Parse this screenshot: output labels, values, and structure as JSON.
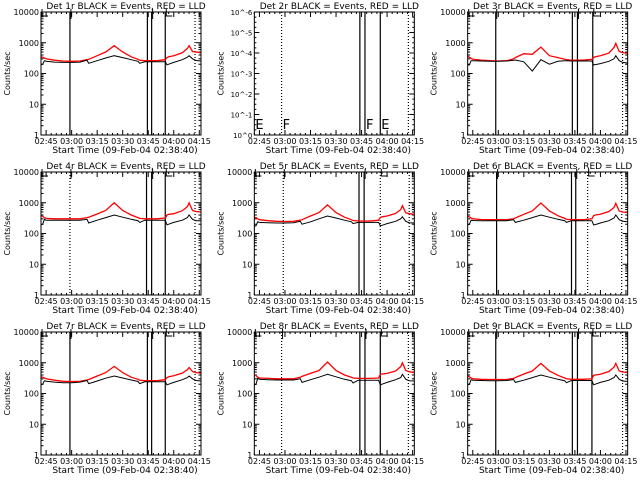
{
  "chart_data": {
    "type": "line",
    "layout": "3x3 grid",
    "xlabel": "Start Time (09-Feb-04 02:38:40)",
    "ylabel": "Counts/sec",
    "x_units": "minutes after 02:45",
    "xlim": [
      -3,
      91
    ],
    "x_ticks": [
      {
        "v": 0,
        "label": "02:45"
      },
      {
        "v": 15,
        "label": "03:00"
      },
      {
        "v": 30,
        "label": "03:15"
      },
      {
        "v": 45,
        "label": "03:30"
      },
      {
        "v": 60,
        "label": "03:45"
      },
      {
        "v": 75,
        "label": "04:00"
      },
      {
        "v": 90,
        "label": "04:15"
      }
    ],
    "y_scale": "log",
    "ylim": [
      1,
      10000
    ],
    "y_ticks": [
      {
        "v": 1,
        "label": "1"
      },
      {
        "v": 10,
        "label": "10"
      },
      {
        "v": 100,
        "label": "100"
      },
      {
        "v": 1000,
        "label": "1000"
      },
      {
        "v": 10000,
        "label": "10000"
      }
    ],
    "series_colors": {
      "events": "#000000",
      "lld": "#ff0000"
    },
    "x": [
      -3,
      -2,
      -1,
      0,
      5,
      10,
      15,
      20,
      24,
      25,
      30,
      35,
      40,
      45,
      50,
      54,
      55,
      58,
      60,
      65,
      70,
      71,
      72,
      75,
      80,
      83,
      84,
      86,
      88,
      91
    ],
    "panels": [
      {
        "title": "Det 1r BLACK = Events, RED = LLD",
        "lines": [
          {
            "t": 14,
            "s": "solid"
          },
          {
            "t": 59.5,
            "s": "solid"
          },
          {
            "t": 62,
            "s": "solid"
          },
          {
            "t": 70,
            "s": "solid"
          },
          {
            "t": 87.5,
            "s": "dotted"
          }
        ],
        "events": [
          190,
          200,
          260,
          250,
          235,
          230,
          230,
          235,
          270,
          215,
          260,
          320,
          380,
          330,
          280,
          250,
          215,
          240,
          240,
          240,
          240,
          190,
          200,
          230,
          280,
          340,
          380,
          300,
          265,
          255
        ],
        "lld": [
          350,
          340,
          320,
          300,
          270,
          255,
          250,
          255,
          280,
          290,
          380,
          500,
          800,
          500,
          350,
          290,
          270,
          260,
          260,
          260,
          280,
          330,
          350,
          380,
          470,
          650,
          800,
          520,
          500,
          470
        ]
      },
      {
        "title": "Det 2r BLACK = Events, RED = LLD",
        "empty": true,
        "y_tick_labels": [
          "10^0",
          "10^-1",
          "10^-2",
          "10^-3",
          "10^-4",
          "10^-5",
          "10^-6"
        ],
        "markers": [
          "E",
          "F",
          "F",
          "E"
        ],
        "lines": [
          {
            "t": 13,
            "s": "dotted"
          },
          {
            "t": 59,
            "s": "solid"
          },
          {
            "t": 62,
            "s": "solid"
          },
          {
            "t": 71,
            "s": "solid"
          },
          {
            "t": 87.5,
            "s": "dotted"
          }
        ]
      },
      {
        "title": "Det 3r BLACK = Events, RED = LLD",
        "lines": [
          {
            "t": 13.5,
            "s": "solid"
          },
          {
            "t": 58.5,
            "s": "solid"
          },
          {
            "t": 61.5,
            "s": "solid"
          },
          {
            "t": 70.5,
            "s": "solid"
          },
          {
            "t": 88,
            "s": "dotted"
          }
        ],
        "events": [
          190,
          190,
          260,
          260,
          255,
          250,
          250,
          255,
          270,
          275,
          240,
          120,
          280,
          200,
          250,
          260,
          260,
          255,
          255,
          255,
          255,
          190,
          195,
          210,
          250,
          300,
          380,
          260,
          230,
          220
        ],
        "lld": [
          360,
          340,
          310,
          290,
          270,
          260,
          255,
          260,
          300,
          330,
          440,
          420,
          720,
          380,
          330,
          290,
          280,
          270,
          270,
          270,
          290,
          330,
          350,
          380,
          460,
          700,
          950,
          520,
          480,
          450
        ]
      },
      {
        "title": "Det 4r BLACK = Events, RED = LLD",
        "lines": [
          {
            "t": 14,
            "s": "dotted"
          },
          {
            "t": 59,
            "s": "solid"
          },
          {
            "t": 62,
            "s": "solid"
          },
          {
            "t": 70,
            "s": "solid"
          },
          {
            "t": 87.5,
            "s": "dotted"
          }
        ],
        "events": [
          190,
          200,
          290,
          270,
          270,
          270,
          270,
          270,
          290,
          220,
          270,
          330,
          400,
          340,
          290,
          260,
          230,
          270,
          270,
          270,
          270,
          190,
          200,
          230,
          270,
          330,
          400,
          290,
          260,
          260
        ],
        "lld": [
          380,
          360,
          330,
          310,
          300,
          300,
          300,
          300,
          330,
          340,
          430,
          560,
          1000,
          560,
          400,
          330,
          310,
          300,
          300,
          300,
          320,
          400,
          420,
          440,
          550,
          750,
          1000,
          560,
          520,
          500
        ]
      },
      {
        "title": "Det 5r BLACK = Events, RED = LLD",
        "lines": [
          {
            "t": 14,
            "s": "dotted"
          },
          {
            "t": 58.5,
            "s": "solid"
          },
          {
            "t": 61.5,
            "s": "solid"
          },
          {
            "t": 71,
            "s": "dotted"
          },
          {
            "t": 88,
            "s": "dotted"
          }
        ],
        "events": [
          170,
          180,
          240,
          230,
          225,
          220,
          220,
          225,
          250,
          200,
          240,
          300,
          370,
          320,
          270,
          240,
          210,
          230,
          230,
          230,
          230,
          180,
          185,
          210,
          250,
          300,
          350,
          250,
          225,
          220
        ],
        "lld": [
          340,
          330,
          300,
          280,
          260,
          250,
          245,
          250,
          270,
          280,
          370,
          480,
          850,
          480,
          340,
          280,
          265,
          255,
          255,
          255,
          270,
          330,
          350,
          370,
          450,
          600,
          800,
          470,
          440,
          420
        ]
      },
      {
        "title": "Det 6r BLACK = Events, RED = LLD",
        "lines": [
          {
            "t": 14,
            "s": "solid"
          },
          {
            "t": 58,
            "s": "solid"
          },
          {
            "t": 60.5,
            "s": "solid"
          },
          {
            "t": 67.5,
            "s": "dotted"
          },
          {
            "t": 87.5,
            "s": "dotted"
          }
        ],
        "events": [
          190,
          200,
          270,
          265,
          260,
          260,
          260,
          260,
          280,
          230,
          270,
          330,
          400,
          340,
          290,
          260,
          230,
          260,
          260,
          260,
          260,
          190,
          195,
          220,
          260,
          320,
          400,
          280,
          250,
          240
        ],
        "lld": [
          360,
          350,
          320,
          300,
          285,
          280,
          280,
          280,
          300,
          320,
          420,
          540,
          980,
          540,
          380,
          310,
          290,
          280,
          280,
          280,
          300,
          380,
          400,
          420,
          520,
          700,
          950,
          540,
          500,
          480
        ]
      },
      {
        "title": "Det 7r BLACK = Events, RED = LLD",
        "lines": [
          {
            "t": 14,
            "s": "solid"
          },
          {
            "t": 59.5,
            "s": "solid"
          },
          {
            "t": 62,
            "s": "solid"
          },
          {
            "t": 70,
            "s": "solid"
          },
          {
            "t": 87.5,
            "s": "dotted"
          }
        ],
        "events": [
          190,
          200,
          260,
          250,
          235,
          225,
          225,
          235,
          265,
          210,
          255,
          315,
          370,
          320,
          275,
          245,
          210,
          240,
          240,
          240,
          240,
          190,
          200,
          230,
          280,
          330,
          370,
          300,
          265,
          255
        ],
        "lld": [
          350,
          340,
          320,
          300,
          270,
          250,
          245,
          250,
          275,
          285,
          370,
          480,
          760,
          480,
          340,
          290,
          270,
          260,
          260,
          260,
          280,
          330,
          350,
          380,
          460,
          600,
          700,
          520,
          480,
          460
        ]
      },
      {
        "title": "Det 8r BLACK = Events, RED = LLD",
        "lines": [
          {
            "t": 13,
            "s": "dotted"
          },
          {
            "t": 59,
            "s": "solid"
          },
          {
            "t": 62,
            "s": "solid"
          },
          {
            "t": 71,
            "s": "solid"
          },
          {
            "t": 87.5,
            "s": "dotted"
          }
        ],
        "events": [
          190,
          200,
          310,
          290,
          280,
          275,
          275,
          275,
          300,
          230,
          280,
          340,
          420,
          350,
          290,
          260,
          220,
          270,
          270,
          270,
          270,
          190,
          200,
          230,
          280,
          330,
          420,
          290,
          260,
          255
        ],
        "lld": [
          400,
          380,
          340,
          320,
          310,
          300,
          300,
          300,
          340,
          360,
          450,
          560,
          1050,
          560,
          400,
          340,
          320,
          310,
          310,
          310,
          320,
          420,
          430,
          450,
          540,
          750,
          1000,
          560,
          510,
          480
        ]
      },
      {
        "title": "Det 9r BLACK = Events, RED = LLD",
        "lines": [
          {
            "t": 13.5,
            "s": "solid"
          },
          {
            "t": 58.5,
            "s": "solid"
          },
          {
            "t": 61.5,
            "s": "solid"
          },
          {
            "t": 70,
            "s": "solid"
          },
          {
            "t": 88,
            "s": "dotted"
          }
        ],
        "events": [
          190,
          200,
          280,
          270,
          265,
          260,
          260,
          265,
          285,
          230,
          270,
          330,
          400,
          340,
          290,
          260,
          225,
          265,
          265,
          265,
          265,
          190,
          200,
          230,
          270,
          330,
          400,
          290,
          255,
          245
        ],
        "lld": [
          370,
          350,
          320,
          300,
          290,
          285,
          285,
          285,
          310,
          330,
          430,
          540,
          950,
          540,
          390,
          320,
          300,
          290,
          290,
          290,
          300,
          390,
          400,
          420,
          520,
          720,
          950,
          540,
          500,
          480
        ]
      }
    ]
  }
}
